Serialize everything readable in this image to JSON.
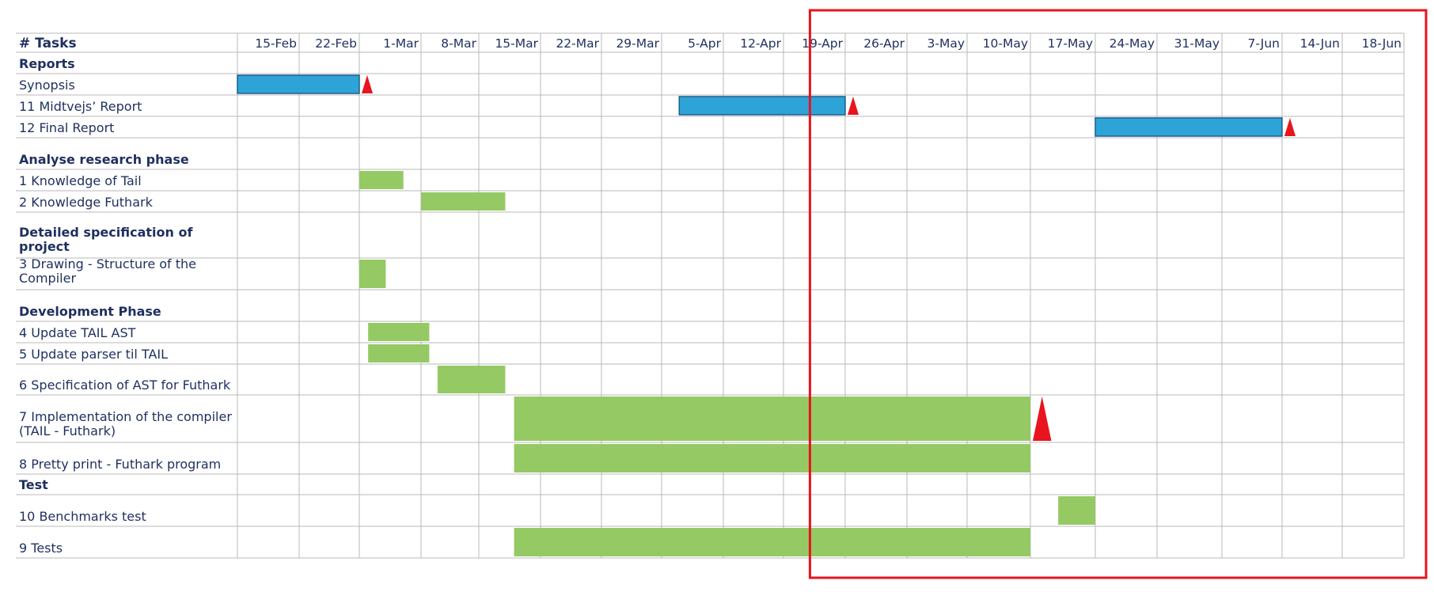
{
  "chart_data": {
    "type": "gantt",
    "header": {
      "tasks_label": "# Tasks"
    },
    "timeline": [
      "15-Feb",
      "22-Feb",
      "1-Mar",
      "8-Mar",
      "15-Mar",
      "22-Mar",
      "29-Mar",
      "5-Apr",
      "12-Apr",
      "19-Apr",
      "26-Apr",
      "3-May",
      "10-May",
      "17-May",
      "24-May",
      "31-May",
      "7-Jun",
      "14-Jun",
      "18-Jun"
    ],
    "rows": [
      {
        "label": "Reports",
        "group": true
      },
      {
        "label": "Synopsis",
        "bars": [
          {
            "start": "15-Feb",
            "end": "1-Mar",
            "kind": "report"
          }
        ],
        "milestone": "1-Mar"
      },
      {
        "label": "11 Midtvejs’ Report",
        "bars": [
          {
            "start": "7-Apr",
            "end": "26-Apr",
            "kind": "report"
          }
        ],
        "milestone": "26-Apr"
      },
      {
        "label": "12 Final Report",
        "bars": [
          {
            "start": "24-May",
            "end": "14-Jun",
            "kind": "report"
          }
        ],
        "milestone": "14-Jun"
      },
      {
        "label": "Analyse research phase",
        "group": true
      },
      {
        "label": "1 Knowledge of Tail",
        "bars": [
          {
            "start": "1-Mar",
            "end": "6-Mar",
            "kind": "task"
          }
        ]
      },
      {
        "label": "2 Knowledge Futhark",
        "bars": [
          {
            "start": "8-Mar",
            "end": "18-Mar",
            "kind": "task"
          }
        ]
      },
      {
        "label": [
          "Detailed specification of",
          "project"
        ],
        "group": true
      },
      {
        "label": [
          "3 Drawing - Structure of the",
          "Compiler"
        ],
        "bars": [
          {
            "start": "1-Mar",
            "end": "4-Mar",
            "kind": "task"
          }
        ]
      },
      {
        "label": "Development Phase",
        "group": true
      },
      {
        "label": "4 Update TAIL AST",
        "bars": [
          {
            "start": "2-Mar",
            "end": "9-Mar",
            "kind": "task"
          }
        ]
      },
      {
        "label": "5 Update parser til TAIL",
        "bars": [
          {
            "start": "2-Mar",
            "end": "9-Mar",
            "kind": "task"
          }
        ]
      },
      {
        "label": "6 Specification of AST for Futhark",
        "bars": [
          {
            "start": "10-Mar",
            "end": "18-Mar",
            "kind": "task"
          }
        ]
      },
      {
        "label": [
          "7 Implementation of the compiler",
          "(TAIL - Futhark)"
        ],
        "bars": [
          {
            "start": "19-Mar",
            "end": "17-May",
            "kind": "task"
          }
        ],
        "milestone": "17-May"
      },
      {
        "label": "8 Pretty print - Futhark program",
        "bars": [
          {
            "start": "19-Mar",
            "end": "17-May",
            "kind": "task"
          }
        ]
      },
      {
        "label": "Test",
        "group": true
      },
      {
        "label": "10 Benchmarks test",
        "bars": [
          {
            "start": "20-May",
            "end": "24-May",
            "kind": "task"
          }
        ]
      },
      {
        "label": "9 Tests",
        "bars": [
          {
            "start": "19-Mar",
            "end": "17-May",
            "kind": "task"
          }
        ]
      }
    ],
    "highlight": {
      "from": "22-Apr",
      "to": "18-Jun",
      "color": "#e8141e"
    },
    "colors": {
      "report": "#2ea3d7",
      "report_border": "#1d5f8a",
      "task": "#95c964",
      "milestone": "#e8141e",
      "grid": "#b9b9b9",
      "text": "#1f2f5f"
    }
  }
}
